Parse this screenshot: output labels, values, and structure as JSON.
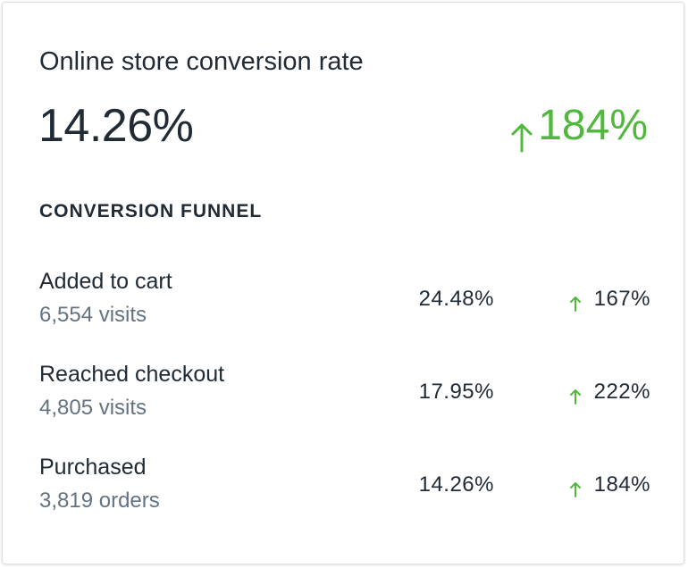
{
  "card": {
    "title": "Online store conversion rate",
    "value": "14.26%",
    "change": "184%",
    "change_direction": "up",
    "change_icon": "arrow-up-icon"
  },
  "funnel": {
    "label": "CONVERSION FUNNEL",
    "rows": [
      {
        "name": "Added to cart",
        "sub": "6,554 visits",
        "rate": "24.48%",
        "change": "167%",
        "change_direction": "up"
      },
      {
        "name": "Reached checkout",
        "sub": "4,805 visits",
        "rate": "17.95%",
        "change": "222%",
        "change_direction": "up"
      },
      {
        "name": "Purchased",
        "sub": "3,819 orders",
        "rate": "14.26%",
        "change": "184%",
        "change_direction": "up"
      }
    ]
  },
  "colors": {
    "positive": "#50b83c",
    "text": "#212b36",
    "subdued": "#637381",
    "border": "#dfe3e8"
  }
}
